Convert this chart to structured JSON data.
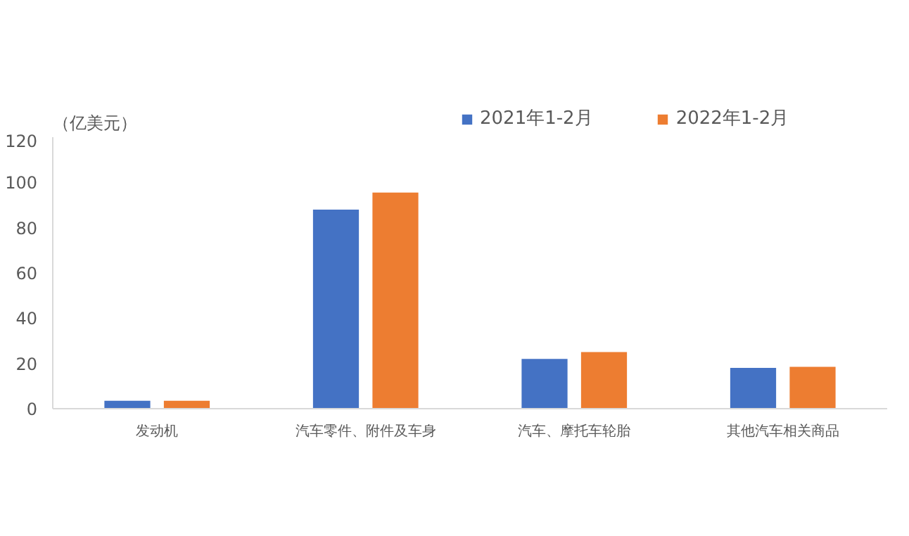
{
  "chart_data": {
    "type": "bar",
    "ylabel": "（亿美元）",
    "categories": [
      "发动机",
      "汽车零件、附件及车身",
      "汽车、摩托车轮胎",
      "其他汽车相关商品"
    ],
    "series": [
      {
        "name": "2021年1-2月",
        "color": "#4472c4",
        "values": [
          3.5,
          88,
          22,
          18
        ]
      },
      {
        "name": "2022年1-2月",
        "color": "#ed7d31",
        "values": [
          3.5,
          95.5,
          25,
          18.5
        ]
      }
    ],
    "ylim": [
      0,
      120
    ],
    "yticks": [
      0,
      20,
      40,
      60,
      80,
      100,
      120
    ],
    "grid": false,
    "legend": "top"
  }
}
